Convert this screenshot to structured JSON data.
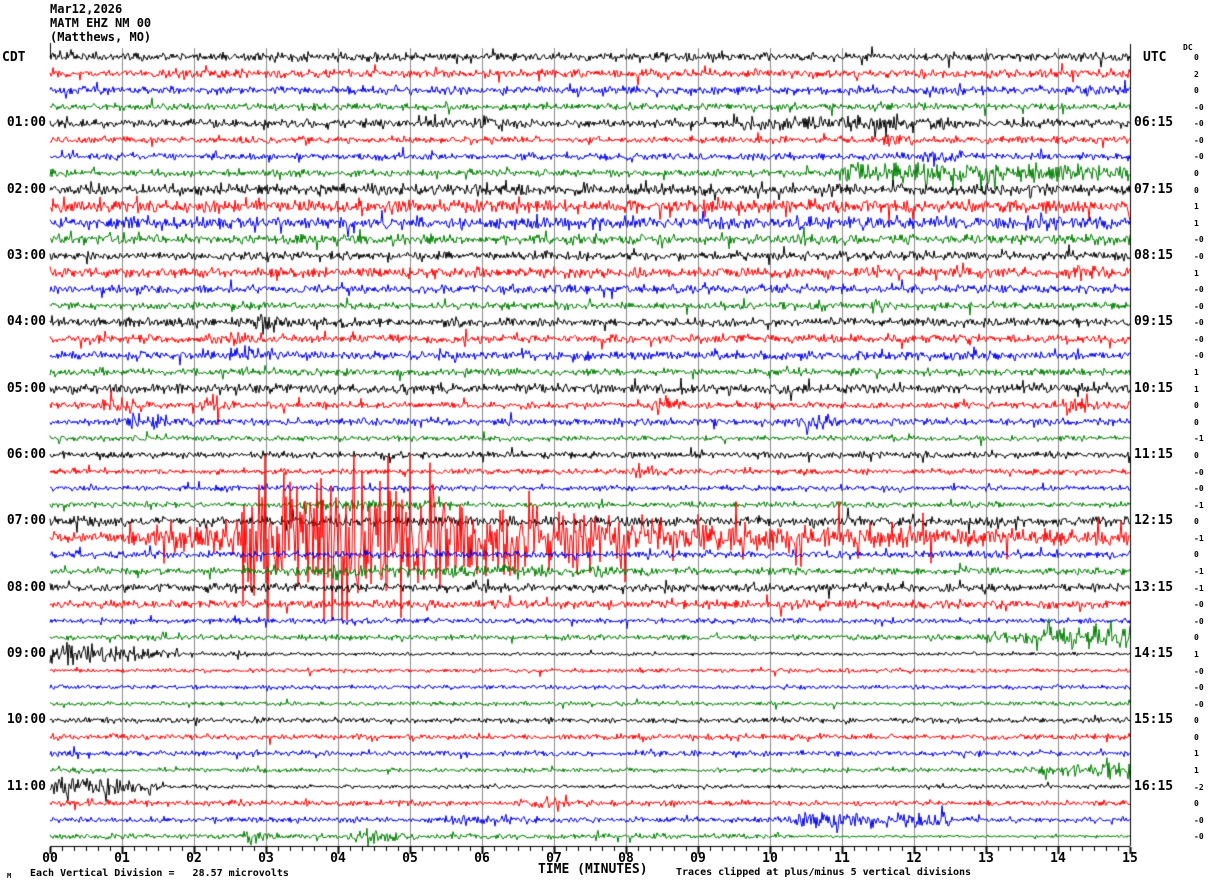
{
  "header": {
    "date": "Mar12,2026",
    "station": "MATM EHZ NM 00",
    "location": "(Matthews, MO)"
  },
  "axes": {
    "left_header": "CDT",
    "right_header": "UTC",
    "dc_header": "DC",
    "xlabel": "TIME (MINUTES)",
    "x_ticks": [
      "00",
      "01",
      "02",
      "03",
      "04",
      "05",
      "06",
      "07",
      "08",
      "09",
      "10",
      "11",
      "12",
      "13",
      "14",
      "15"
    ]
  },
  "footer": {
    "scale_note": "Each Vertical Division =   28.57 microvolts",
    "clip_note": "Traces clipped at plus/minus 5 vertical divisions",
    "corner_mark": "M"
  },
  "chart_data": {
    "type": "line",
    "subtype": "helicorder-seismogram",
    "x_range_minutes": [
      0,
      15
    ],
    "minutes_per_line": 15,
    "grid": "vertical-minute-lines",
    "clip_divisions": 5,
    "microvolts_per_division": 28.57,
    "colors": {
      "black": "#000000",
      "red": "#ff0000",
      "blue": "#0000ee",
      "green": "#008000",
      "grid": "#8c8c8c"
    },
    "spike_probability": 0.05,
    "spike_multiplier": 2.2,
    "rows": [
      {
        "color": "black",
        "left": "",
        "right": "",
        "dc": "0",
        "amp": 6,
        "events": []
      },
      {
        "color": "red",
        "left": "",
        "right": "",
        "dc": "2",
        "amp": 6,
        "events": []
      },
      {
        "color": "blue",
        "left": "",
        "right": "",
        "dc": "0",
        "amp": 6,
        "events": []
      },
      {
        "color": "green",
        "left": "",
        "right": "",
        "dc": "-0",
        "amp": 5,
        "events": []
      },
      {
        "color": "black",
        "left": "01:00",
        "right": "06:15",
        "dc": "-0",
        "amp": 6,
        "events": [
          [
            5.8,
            6.6,
            8,
            "b"
          ],
          [
            9.3,
            12.6,
            5,
            "p"
          ]
        ]
      },
      {
        "color": "red",
        "left": "",
        "right": "",
        "dc": "-0",
        "amp": 5,
        "events": [
          [
            11.5,
            12.2,
            6,
            "b"
          ]
        ]
      },
      {
        "color": "blue",
        "left": "",
        "right": "",
        "dc": "-0",
        "amp": 5,
        "events": [
          [
            12.0,
            13.2,
            9,
            "b"
          ]
        ]
      },
      {
        "color": "green",
        "left": "",
        "right": "",
        "dc": "0",
        "amp": 5,
        "events": [
          [
            10.8,
            15,
            9,
            "p"
          ]
        ]
      },
      {
        "color": "black",
        "left": "02:00",
        "right": "07:15",
        "dc": "0",
        "amp": 8,
        "events": []
      },
      {
        "color": "red",
        "left": "",
        "right": "",
        "dc": "1",
        "amp": 9,
        "events": []
      },
      {
        "color": "blue",
        "left": "",
        "right": "",
        "dc": "1",
        "amp": 9,
        "events": []
      },
      {
        "color": "green",
        "left": "",
        "right": "",
        "dc": "-0",
        "amp": 7,
        "events": []
      },
      {
        "color": "black",
        "left": "03:00",
        "right": "08:15",
        "dc": "-0",
        "amp": 6,
        "events": []
      },
      {
        "color": "red",
        "left": "",
        "right": "",
        "dc": "1",
        "amp": 7,
        "events": [
          [
            14.1,
            14.8,
            10,
            "b"
          ]
        ]
      },
      {
        "color": "blue",
        "left": "",
        "right": "",
        "dc": "-0",
        "amp": 6,
        "events": []
      },
      {
        "color": "green",
        "left": "",
        "right": "",
        "dc": "-0",
        "amp": 5,
        "events": [
          [
            11.3,
            11.8,
            7,
            "b"
          ]
        ]
      },
      {
        "color": "black",
        "left": "04:00",
        "right": "09:15",
        "dc": "-0",
        "amp": 6,
        "events": [
          [
            2.8,
            3.5,
            10,
            "b"
          ]
        ]
      },
      {
        "color": "red",
        "left": "",
        "right": "",
        "dc": "-0",
        "amp": 6,
        "events": [
          [
            2.4,
            3.0,
            8,
            "b"
          ]
        ]
      },
      {
        "color": "blue",
        "left": "",
        "right": "",
        "dc": "-0",
        "amp": 6,
        "events": [
          [
            2.4,
            3.2,
            11,
            "b"
          ],
          [
            6.3,
            6.9,
            7,
            "b"
          ]
        ]
      },
      {
        "color": "green",
        "left": "",
        "right": "",
        "dc": "1",
        "amp": 5,
        "events": []
      },
      {
        "color": "black",
        "left": "05:00",
        "right": "10:15",
        "dc": "1",
        "amp": 7,
        "events": []
      },
      {
        "color": "red",
        "left": "",
        "right": "",
        "dc": "0",
        "amp": 5,
        "events": [
          [
            0.7,
            1.4,
            14,
            "b"
          ],
          [
            2.1,
            2.7,
            12,
            "b"
          ],
          [
            8.3,
            8.8,
            16,
            "b"
          ],
          [
            14.0,
            14.7,
            10,
            "b"
          ]
        ]
      },
      {
        "color": "blue",
        "left": "",
        "right": "",
        "dc": "0",
        "amp": 5,
        "events": [
          [
            0.9,
            2.1,
            12,
            "b"
          ],
          [
            10.3,
            11.5,
            9,
            "b"
          ]
        ]
      },
      {
        "color": "green",
        "left": "",
        "right": "",
        "dc": "-1",
        "amp": 4,
        "events": []
      },
      {
        "color": "black",
        "left": "06:00",
        "right": "11:15",
        "dc": "0",
        "amp": 5,
        "events": []
      },
      {
        "color": "red",
        "left": "",
        "right": "",
        "dc": "-0",
        "amp": 4,
        "events": [
          [
            8.0,
            8.7,
            8,
            "b"
          ]
        ]
      },
      {
        "color": "blue",
        "left": "",
        "right": "",
        "dc": "-0",
        "amp": 4,
        "events": []
      },
      {
        "color": "green",
        "left": "",
        "right": "",
        "dc": "-1",
        "amp": 4,
        "events": [
          [
            3.4,
            5.6,
            4,
            "p"
          ]
        ]
      },
      {
        "color": "black",
        "left": "07:00",
        "right": "12:15",
        "dc": "0",
        "amp": 7,
        "events": []
      },
      {
        "color": "red",
        "left": "",
        "right": "",
        "dc": "-1",
        "amp": 8,
        "spike_mul": 3.2,
        "events": [
          [
            1.0,
            2.6,
            22,
            "r"
          ],
          [
            2.6,
            5.5,
            92,
            "p"
          ],
          [
            5.5,
            9.0,
            55,
            "d"
          ],
          [
            9.0,
            15,
            12,
            "d"
          ]
        ]
      },
      {
        "color": "blue",
        "left": "",
        "right": "",
        "dc": "0",
        "amp": 5,
        "events": []
      },
      {
        "color": "green",
        "left": "",
        "right": "",
        "dc": "-1",
        "amp": 5,
        "events": [
          [
            2.8,
            8.0,
            3,
            "p"
          ]
        ]
      },
      {
        "color": "black",
        "left": "08:00",
        "right": "13:15",
        "dc": "-1",
        "amp": 6,
        "events": []
      },
      {
        "color": "red",
        "left": "",
        "right": "",
        "dc": "-0",
        "amp": 6,
        "events": []
      },
      {
        "color": "blue",
        "left": "",
        "right": "",
        "dc": "-0",
        "amp": 4,
        "events": []
      },
      {
        "color": "green",
        "left": "",
        "right": "",
        "dc": "0",
        "amp": 4,
        "events": [
          [
            12.8,
            15,
            20,
            "r"
          ]
        ]
      },
      {
        "color": "black",
        "left": "09:00",
        "right": "14:15",
        "dc": "1",
        "amp": 3,
        "events": [
          [
            0,
            1.8,
            14,
            "d"
          ],
          [
            2.4,
            3.0,
            6,
            "b"
          ]
        ],
        "segments": [
          [
            1.8,
            15,
            0.8
          ]
        ]
      },
      {
        "color": "red",
        "left": "",
        "right": "",
        "dc": "-0",
        "amp": 3,
        "events": []
      },
      {
        "color": "blue",
        "left": "",
        "right": "",
        "dc": "-0",
        "amp": 3,
        "events": []
      },
      {
        "color": "green",
        "left": "",
        "right": "",
        "dc": "-0",
        "amp": 3,
        "events": []
      },
      {
        "color": "black",
        "left": "10:00",
        "right": "15:15",
        "dc": "0",
        "amp": 4,
        "events": []
      },
      {
        "color": "red",
        "left": "",
        "right": "",
        "dc": "0",
        "amp": 4,
        "events": [
          [
            0.8,
            1.15,
            10,
            "b"
          ]
        ]
      },
      {
        "color": "blue",
        "left": "",
        "right": "",
        "dc": "1",
        "amp": 4,
        "events": []
      },
      {
        "color": "green",
        "left": "",
        "right": "",
        "dc": "1",
        "amp": 3,
        "events": [
          [
            13.2,
            15,
            11,
            "r"
          ]
        ]
      },
      {
        "color": "black",
        "left": "11:00",
        "right": "16:15",
        "dc": "-2",
        "amp": 5,
        "events": [
          [
            0,
            1.6,
            13,
            "d"
          ]
        ],
        "segments": [
          [
            1.6,
            15,
            0.55
          ]
        ]
      },
      {
        "color": "red",
        "left": "",
        "right": "",
        "dc": "0",
        "amp": 4,
        "events": [
          [
            6.6,
            7.7,
            7,
            "b"
          ]
        ]
      },
      {
        "color": "blue",
        "left": "",
        "right": "",
        "dc": "-0",
        "amp": 4,
        "events": [
          [
            5.4,
            7.1,
            6,
            "b"
          ],
          [
            10.2,
            12.5,
            7,
            "p"
          ]
        ]
      },
      {
        "color": "green",
        "left": "",
        "right": "",
        "dc": "-0",
        "amp": 4,
        "events": [
          [
            2.6,
            3.4,
            9,
            "b"
          ],
          [
            4.1,
            5.2,
            9,
            "b"
          ]
        ],
        "segments": [
          [
            10.4,
            15,
            0.45
          ]
        ]
      }
    ]
  }
}
